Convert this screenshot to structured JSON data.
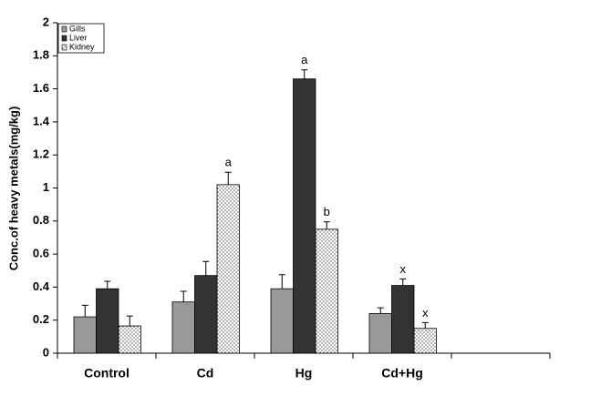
{
  "chart_data": {
    "type": "bar",
    "ylabel": "Conc.of heavy metals(mg/kg)",
    "categories": [
      "Control",
      "Cd",
      "Hg",
      "Cd+Hg",
      null
    ],
    "series": [
      {
        "name": "Gills",
        "color": "#999999",
        "values": [
          0.22,
          0.31,
          0.39,
          0.24,
          null
        ],
        "errors": [
          0.07,
          0.065,
          0.085,
          0.035,
          null
        ]
      },
      {
        "name": "Liver",
        "color": "#333333",
        "values": [
          0.39,
          0.47,
          1.66,
          0.41,
          null
        ],
        "errors": [
          0.045,
          0.085,
          0.055,
          0.04,
          null
        ]
      },
      {
        "name": "Kidney",
        "color": "#ffffff",
        "pattern": "dots",
        "values": [
          0.165,
          1.02,
          0.75,
          0.15,
          null
        ],
        "errors": [
          0.06,
          0.075,
          0.045,
          0.035,
          null
        ]
      }
    ],
    "annotations": [
      {
        "text": "a",
        "category": 1,
        "series": 2
      },
      {
        "text": "a",
        "category": 2,
        "series": 1
      },
      {
        "text": "b",
        "category": 2,
        "series": 2
      },
      {
        "text": "x",
        "category": 3,
        "series": 1
      },
      {
        "text": "x",
        "category": 3,
        "series": 2
      }
    ],
    "ylim": [
      0,
      2
    ],
    "yticks": [
      0,
      0.2,
      0.4,
      0.6,
      0.8,
      1,
      1.2,
      1.4,
      1.6,
      1.8,
      2
    ],
    "grid": false,
    "legend": "upper left"
  }
}
